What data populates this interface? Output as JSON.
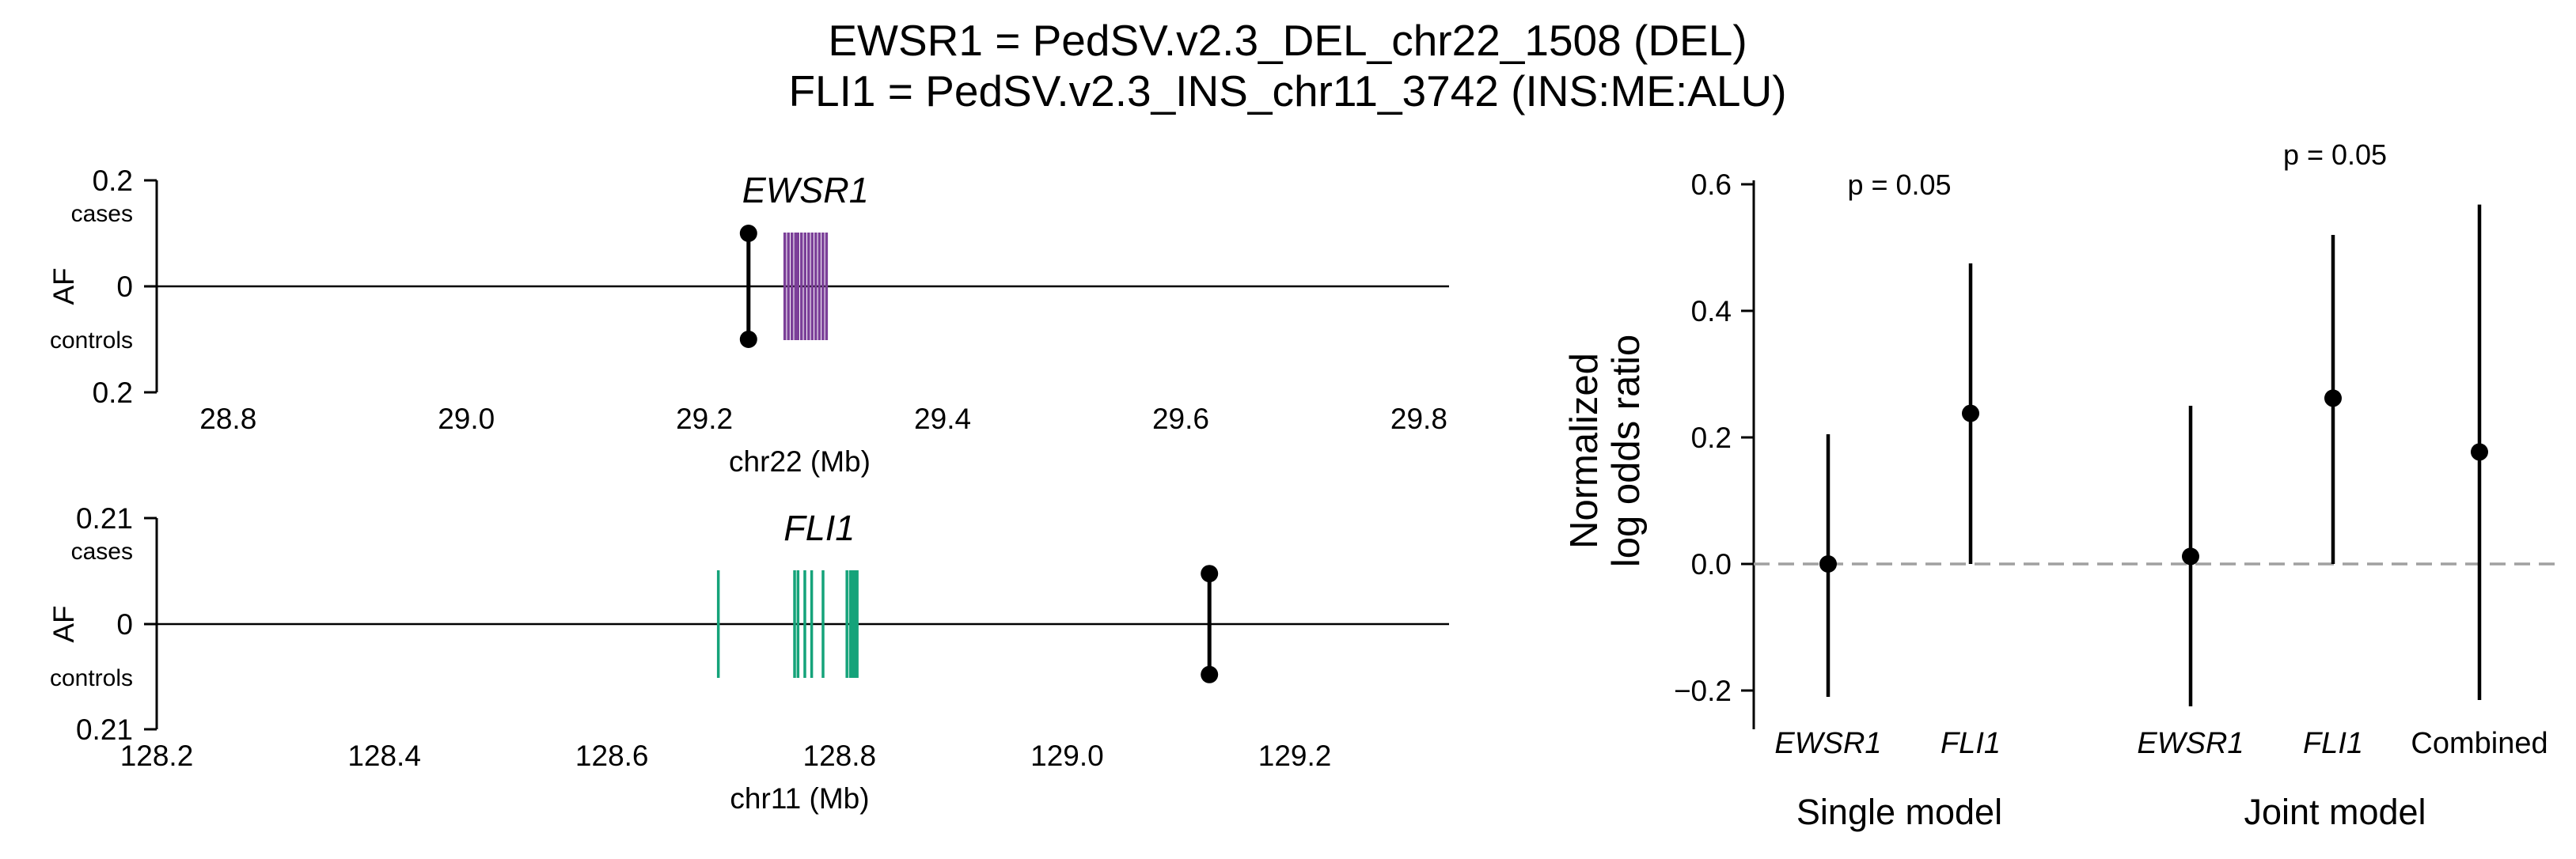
{
  "title_lines": [
    "EWSR1 = PedSV.v2.3_DEL_chr22_1508 (DEL)",
    "FLI1 = PedSV.v2.3_INS_chr11_3742 (INS:ME:ALU)"
  ],
  "chart_data": [
    {
      "type": "scatter",
      "panel": "top-left",
      "gene_label": "EWSR1",
      "xlabel": "chr22 (Mb)",
      "ylabel": "AF",
      "top_label": "cases",
      "bottom_label": "controls",
      "ylim_labels": [
        "0.2",
        "0",
        "0.2"
      ],
      "af_max": 0.2,
      "xlim": [
        28.74,
        29.82
      ],
      "xticks": [
        28.8,
        29.0,
        29.2,
        29.4,
        29.6,
        29.8
      ],
      "xtick_labels": [
        "28.8",
        "29.0",
        "29.2",
        "29.4",
        "29.6",
        "29.8"
      ],
      "variant": {
        "pos": 29.237,
        "af_cases": 0.1,
        "af_controls": 0.1
      },
      "gene_color": "#7b3f98",
      "exon_positions": [
        29.2675,
        29.2705,
        29.2735,
        29.2765,
        29.2785,
        29.2815,
        29.2845,
        29.2875,
        29.2905,
        29.2935,
        29.2965,
        29.2995,
        29.3025
      ]
    },
    {
      "type": "scatter",
      "panel": "bottom-left",
      "gene_label": "FLI1",
      "xlabel": "chr11 (Mb)",
      "ylabel": "AF",
      "top_label": "cases",
      "bottom_label": "controls",
      "ylim_labels": [
        "0.21",
        "0",
        "0.21"
      ],
      "af_max": 0.21,
      "xlim": [
        128.2,
        129.33
      ],
      "xticks": [
        128.2,
        128.4,
        128.6,
        128.8,
        129.0,
        129.2
      ],
      "xtick_labels": [
        "128.2",
        "128.4",
        "128.6",
        "128.8",
        "129.0",
        "129.2"
      ],
      "variant": {
        "pos": 129.125,
        "af_cases": 0.1,
        "af_controls": 0.1
      },
      "gene_color": "#15a37a",
      "exon_positions": [
        128.6935,
        128.7605,
        128.7635,
        128.7695,
        128.7755,
        128.7855,
        128.8065,
        128.8095,
        128.8115,
        128.8135,
        128.8155
      ]
    },
    {
      "type": "scatter",
      "panel": "right",
      "ylabel_lines": [
        "Normalized",
        "log odds ratio"
      ],
      "ylim": [
        -0.26,
        0.61
      ],
      "yticks": [
        -0.2,
        0.0,
        0.2,
        0.4,
        0.6
      ],
      "ytick_labels": [
        "−0.2",
        "0.0",
        "0.2",
        "0.4",
        "0.6"
      ],
      "reference_line": 0.0,
      "categories": [
        "EWSR1",
        "FLI1",
        "EWSR1",
        "FLI1",
        "Combined"
      ],
      "category_italic": [
        true,
        true,
        true,
        true,
        false
      ],
      "groups": [
        {
          "label": "Single model",
          "members": [
            0,
            1
          ],
          "pvalue": "p = 0.05"
        },
        {
          "label": "Joint model",
          "members": [
            2,
            3,
            4
          ],
          "pvalue": "p = 0.05"
        }
      ],
      "points": [
        {
          "estimate": 0.0,
          "low": -0.21,
          "high": 0.205
        },
        {
          "estimate": 0.238,
          "low": 0.0,
          "high": 0.475
        },
        {
          "estimate": 0.012,
          "low": -0.225,
          "high": 0.25
        },
        {
          "estimate": 0.262,
          "low": 0.0,
          "high": 0.52
        },
        {
          "estimate": 0.177,
          "low": -0.215,
          "high": 0.568
        }
      ]
    }
  ]
}
